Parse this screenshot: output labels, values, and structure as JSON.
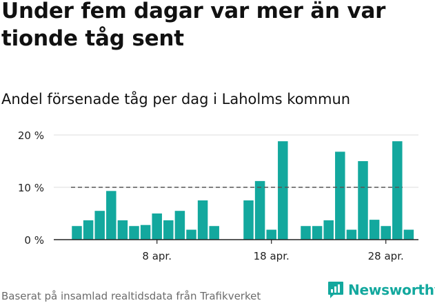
{
  "title": "Under fem dagar var mer än var tionde tåg sent",
  "subtitle": "Andel försenade tåg per dag i Laholms kommun",
  "footer": "Baserat på insamlad realtidsdata från Trafikverket",
  "brand": {
    "name": "Newsworthy",
    "icon": "newsworthy-logo-icon"
  },
  "colors": {
    "bar": "#13a89e",
    "reference": "#555555",
    "grid": "#dddddd",
    "axis": "#222222"
  },
  "chart_data": {
    "type": "bar",
    "title": "Andel försenade tåg per dag i Laholms kommun",
    "xlabel": "",
    "ylabel": "",
    "ylim": [
      0,
      20
    ],
    "yticks": [
      0,
      10,
      20
    ],
    "ytick_labels": [
      "0 %",
      "10 %",
      "20 %"
    ],
    "xtick_labels": [
      {
        "label": "8 apr.",
        "category": "2024-04-08"
      },
      {
        "label": "18 apr.",
        "category": "2024-04-18"
      },
      {
        "label": "28 apr.",
        "category": "2024-04-28"
      }
    ],
    "grid": true,
    "reference_line": {
      "value": 10,
      "style": "dashed"
    },
    "categories": [
      "2024-04-01",
      "2024-04-02",
      "2024-04-03",
      "2024-04-04",
      "2024-04-05",
      "2024-04-06",
      "2024-04-07",
      "2024-04-08",
      "2024-04-09",
      "2024-04-10",
      "2024-04-11",
      "2024-04-12",
      "2024-04-13",
      "2024-04-14",
      "2024-04-15",
      "2024-04-16",
      "2024-04-17",
      "2024-04-18",
      "2024-04-19",
      "2024-04-20",
      "2024-04-21",
      "2024-04-22",
      "2024-04-23",
      "2024-04-24",
      "2024-04-25",
      "2024-04-26",
      "2024-04-27",
      "2024-04-28",
      "2024-04-29",
      "2024-04-30"
    ],
    "values": [
      2.6,
      3.7,
      5.5,
      9.3,
      3.7,
      2.6,
      2.8,
      5.0,
      3.7,
      5.5,
      1.9,
      7.5,
      2.6,
      null,
      null,
      7.5,
      11.2,
      1.9,
      18.8,
      null,
      2.6,
      2.6,
      3.7,
      16.8,
      1.9,
      15.0,
      3.8,
      2.6,
      18.8,
      1.9
    ]
  }
}
